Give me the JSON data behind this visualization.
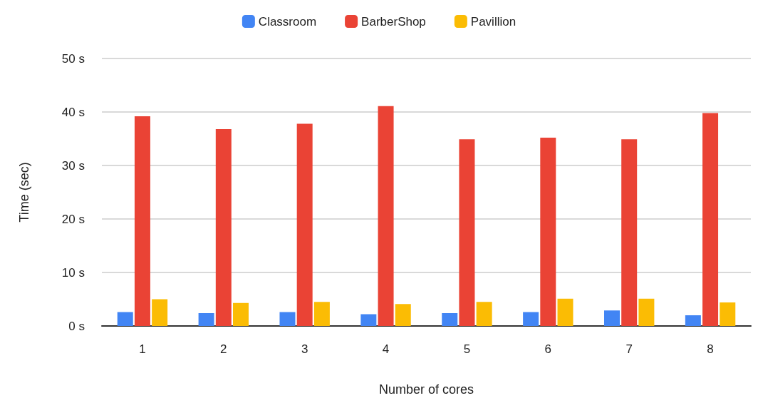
{
  "chart_data": {
    "type": "bar",
    "xlabel": "Number of cores",
    "ylabel": "Time (sec)",
    "categories": [
      "1",
      "2",
      "3",
      "4",
      "5",
      "6",
      "7",
      "8"
    ],
    "series": [
      {
        "name": "Classroom",
        "color": "#4285f4",
        "values": [
          2.6,
          2.4,
          2.6,
          2.2,
          2.4,
          2.6,
          2.9,
          2.0
        ]
      },
      {
        "name": "BarberShop",
        "color": "#ea4335",
        "values": [
          39.2,
          36.8,
          37.8,
          41.1,
          34.9,
          35.2,
          34.9,
          39.8
        ]
      },
      {
        "name": "Pavillion",
        "color": "#fbbc04",
        "values": [
          5.0,
          4.3,
          4.5,
          4.1,
          4.5,
          5.1,
          5.1,
          4.4
        ]
      }
    ],
    "ylim": [
      0,
      50
    ],
    "yticks": [
      {
        "value": 0,
        "label": "0 s"
      },
      {
        "value": 10,
        "label": "10 s"
      },
      {
        "value": 20,
        "label": "20 s"
      },
      {
        "value": 30,
        "label": "30 s"
      },
      {
        "value": 40,
        "label": "40 s"
      },
      {
        "value": 50,
        "label": "50 s"
      }
    ],
    "grid": "y",
    "legend": "top"
  }
}
